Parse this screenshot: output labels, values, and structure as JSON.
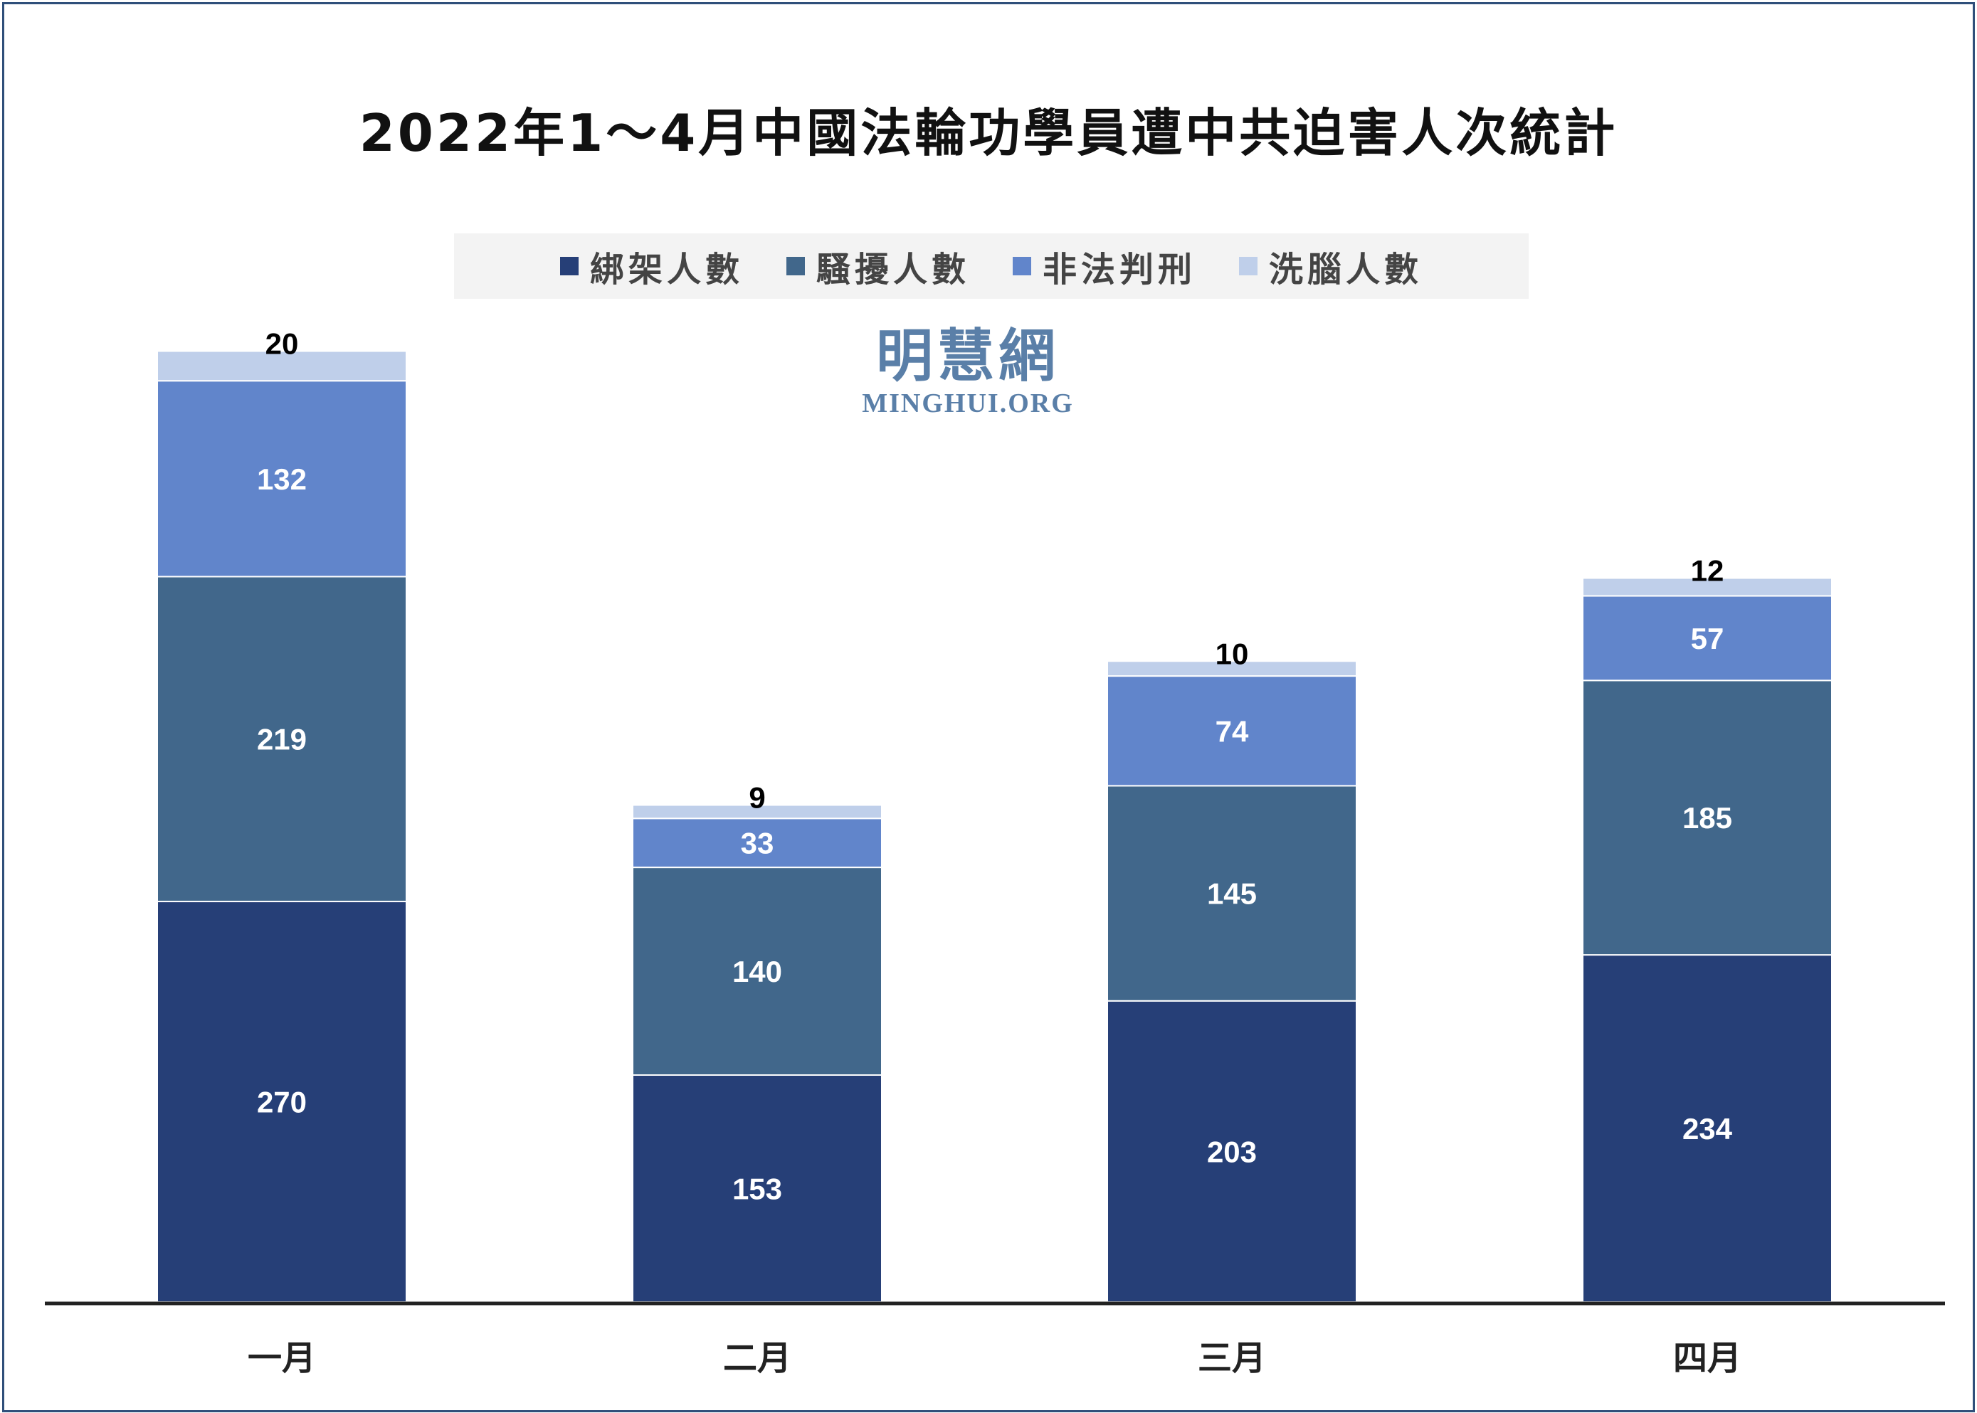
{
  "colors": {
    "abducted": "#263f77",
    "harassed": "#41678b",
    "sentenced": "#6185cb",
    "brainwashed": "#bfcfea",
    "axis": "#222222",
    "label_light": "#ffffff",
    "label_dark": "#000000"
  },
  "watermark": {
    "cn": "明慧網",
    "en": "MINGHUI.ORG"
  },
  "chart_data": {
    "type": "bar",
    "stacked": true,
    "title": "2022年1～4月中國法輪功學員遭中共迫害人次統計",
    "categories": [
      "一月",
      "二月",
      "三月",
      "四月"
    ],
    "series": [
      {
        "name": "綁架人數",
        "color": "#263f77",
        "values": [
          270,
          153,
          203,
          234
        ]
      },
      {
        "name": "騷擾人數",
        "color": "#41678b",
        "values": [
          219,
          140,
          145,
          185
        ]
      },
      {
        "name": "非法判刑",
        "color": "#6185cb",
        "values": [
          132,
          33,
          74,
          57
        ]
      },
      {
        "name": "洗腦人數",
        "color": "#bfcfea",
        "values": [
          20,
          9,
          10,
          12
        ]
      }
    ],
    "ylim": [
      0,
      660
    ],
    "legend_position": "top-center",
    "grid": false,
    "xlabel": "",
    "ylabel": ""
  }
}
